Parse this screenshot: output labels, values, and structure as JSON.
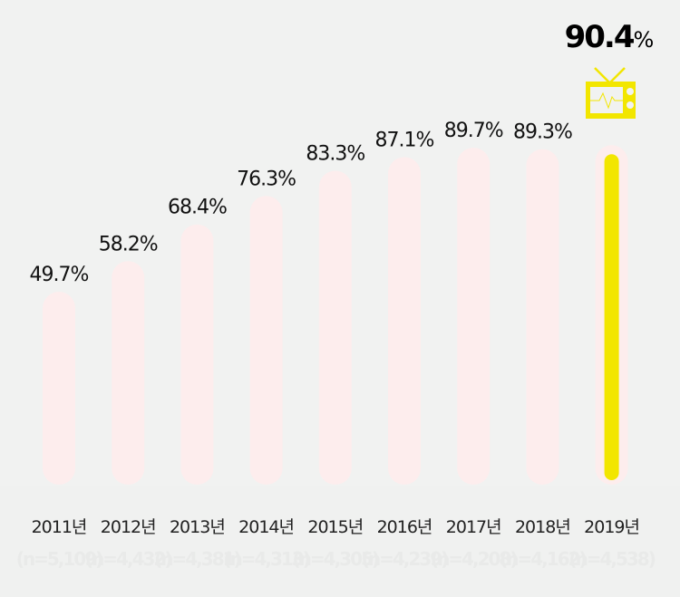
{
  "chart_data": {
    "type": "bar",
    "categories": [
      "2011년",
      "2012년",
      "2013년",
      "2014년",
      "2015년",
      "2016년",
      "2017년",
      "2018년",
      "2019년"
    ],
    "values": [
      49.7,
      58.2,
      68.4,
      76.3,
      83.3,
      87.1,
      89.7,
      89.3,
      90.4
    ],
    "value_labels": [
      "49.7%",
      "58.2%",
      "68.4%",
      "76.3%",
      "83.3%",
      "87.1%",
      "89.7%",
      "89.3%",
      "90.4"
    ],
    "highlight_suffix": "%",
    "sample_sizes": [
      "(n=5,109)",
      "(n=4,432)",
      "(n=4,381)",
      "(n=4,313)",
      "(n=4,305)",
      "(n=4,239)",
      "(n=4,208)",
      "(n=4,162)",
      "(n=4,538)"
    ],
    "highlight_index": 8,
    "icon": "tv-icon",
    "colors": {
      "bar": "#fdeded",
      "highlight": "#f2e600",
      "background": "#f1f2f1"
    },
    "ylim": [
      0,
      100
    ]
  }
}
